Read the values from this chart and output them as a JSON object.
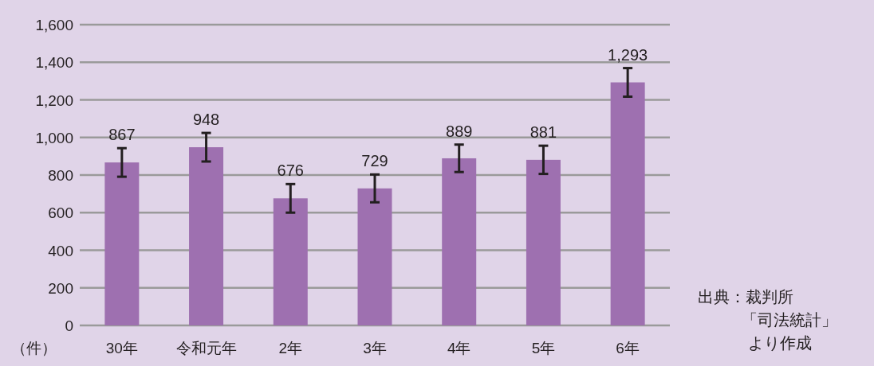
{
  "chart_data": {
    "type": "bar",
    "ylabel": "（件）",
    "categories": [
      "30年",
      "令和元年",
      "2年",
      "3年",
      "4年",
      "5年",
      "6年"
    ],
    "values": [
      867,
      948,
      676,
      729,
      889,
      881,
      1293
    ],
    "errors": [
      76,
      76,
      76,
      74,
      73,
      75,
      76
    ],
    "color": "#9e70b0",
    "value_labels": [
      "867",
      "948",
      "676",
      "729",
      "889",
      "881",
      "1,293"
    ],
    "ylim": [
      0,
      1600
    ],
    "yticks": [
      0,
      200,
      400,
      600,
      800,
      {
        "value": 1000,
        "label": "1,000"
      },
      {
        "value": 1200,
        "label": "1,200"
      },
      {
        "value": 1400,
        "label": "1,400"
      },
      {
        "value": 1600,
        "label": "1,600"
      }
    ],
    "grid": "y",
    "annotations": [
      "出典：裁判所",
      "「司法統計」",
      "より作成"
    ]
  }
}
